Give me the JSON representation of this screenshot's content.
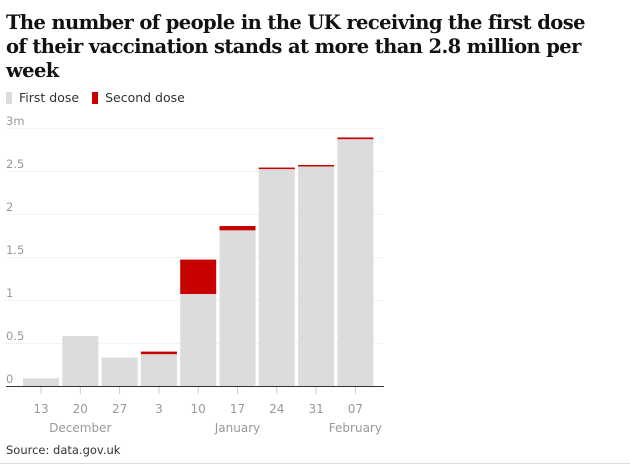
{
  "headline": "The number of people in the UK receiving the first dose of their vaccination stands at more than 2.8 million per week",
  "legend": [
    {
      "label": "First dose",
      "color": "#dcdcdc"
    },
    {
      "label": "Second dose",
      "color": "#c70000"
    }
  ],
  "source": "Source: data.gov.uk",
  "chart_data": {
    "type": "bar",
    "stacked": true,
    "categories": [
      "13",
      "20",
      "27",
      "3",
      "10",
      "17",
      "24",
      "31",
      "07"
    ],
    "month_labels": [
      {
        "label": "December",
        "category": "20"
      },
      {
        "label": "January",
        "category": "17"
      },
      {
        "label": "February",
        "category": "07"
      }
    ],
    "series": [
      {
        "name": "First dose",
        "color": "#dcdcdc",
        "values": [
          0.09,
          0.58,
          0.33,
          0.37,
          1.07,
          1.81,
          2.53,
          2.56,
          2.87
        ]
      },
      {
        "name": "Second dose",
        "color": "#c70000",
        "values": [
          0,
          0,
          0,
          0.03,
          0.4,
          0.05,
          0.01,
          0.01,
          0.02
        ]
      }
    ],
    "yticks": [
      "3m",
      "2.5",
      "2",
      "1.5",
      "1",
      "0.5",
      "0"
    ],
    "ytick_values": [
      3,
      2.5,
      2,
      1.5,
      1,
      0.5,
      0
    ],
    "ylim": [
      0,
      3
    ],
    "grid": true
  }
}
